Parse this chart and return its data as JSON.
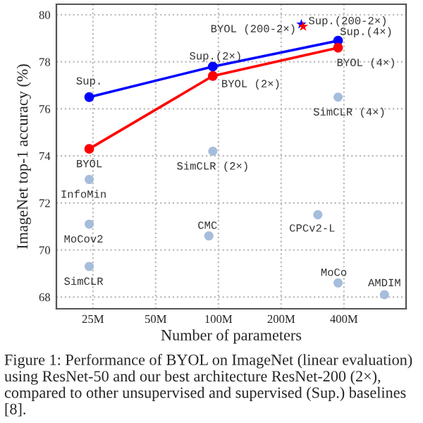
{
  "chart_data": {
    "type": "line",
    "xlabel": "Number of parameters",
    "ylabel": "ImageNet top-1 accuracy (%)",
    "log": "x",
    "grid": true,
    "line_style": "solid",
    "xlim": [
      16.7,
      795
    ],
    "xticks": [
      {
        "value": 25,
        "label": "25M"
      },
      {
        "value": 50,
        "label": "50M"
      },
      {
        "value": 100,
        "label": "100M"
      },
      {
        "value": 200,
        "label": "200M"
      },
      {
        "value": 400,
        "label": "400M"
      }
    ],
    "ylim": [
      67.5,
      80.45
    ],
    "yticks": [
      68,
      70,
      72,
      74,
      76,
      78,
      80
    ],
    "series": [
      {
        "marker": "circle",
        "color": "#0000ff",
        "x": [
          24,
          94,
          375
        ],
        "values": [
          76.5,
          77.8,
          78.9
        ]
      },
      {
        "marker": "circle",
        "color": "#ff0000",
        "x": [
          24,
          94,
          375
        ],
        "values": [
          74.3,
          77.4,
          78.6
        ]
      },
      {
        "type": "scatter",
        "marker": "star",
        "color": "#0000ff",
        "x": [
          250
        ],
        "values": [
          79.6
        ]
      },
      {
        "type": "scatter",
        "marker": "star",
        "color": "#ff0000",
        "x": [
          255
        ],
        "values": [
          79.5
        ]
      },
      {
        "type": "scatter",
        "marker": "circle",
        "color": "#a6bddb",
        "x": [
          94,
          375,
          24,
          24,
          24,
          90,
          300,
          375,
          626
        ],
        "values": [
          74.2,
          76.5,
          73.0,
          71.1,
          69.3,
          70.6,
          71.5,
          68.6,
          68.1
        ]
      }
    ],
    "annotations": [
      {
        "text": "Sup.",
        "x": 24,
        "y": 76.5
      },
      {
        "text": "Sup.(2×)",
        "x": 94,
        "y": 77.8
      },
      {
        "text": "Sup.(4×)",
        "x": 375,
        "y": 78.9
      },
      {
        "text": "Sup.(200-2×)",
        "x": 250,
        "y": 79.6
      },
      {
        "text": "BYOL (200-2×)",
        "x": 255,
        "y": 79.5
      },
      {
        "text": "BYOL",
        "x": 24,
        "y": 74.3
      },
      {
        "text": "BYOL (2×)",
        "x": 94,
        "y": 77.4
      },
      {
        "text": "BYOL (4×)",
        "x": 375,
        "y": 78.6
      },
      {
        "text": "SimCLR (4×)",
        "x": 375,
        "y": 76.5
      },
      {
        "text": "SimCLR (2×)",
        "x": 94,
        "y": 74.2
      },
      {
        "text": "InfoMin",
        "x": 24,
        "y": 73.0
      },
      {
        "text": "MoCov2",
        "x": 24,
        "y": 71.1
      },
      {
        "text": "CMC",
        "x": 90,
        "y": 70.6
      },
      {
        "text": "CPCv2-L",
        "x": 300,
        "y": 71.5
      },
      {
        "text": "SimCLR",
        "x": 24,
        "y": 69.3
      },
      {
        "text": "MoCo",
        "x": 375,
        "y": 68.6
      },
      {
        "text": "AMDIM",
        "x": 626,
        "y": 68.1
      },
      "Figure 1: Performance of BYOL on ImageNet (linear evaluation) using ResNet-50 and our best architecture ResNet-200 (2×), compared to other unsupervised and supervised (Sup.) baselines [8]."
    ]
  }
}
